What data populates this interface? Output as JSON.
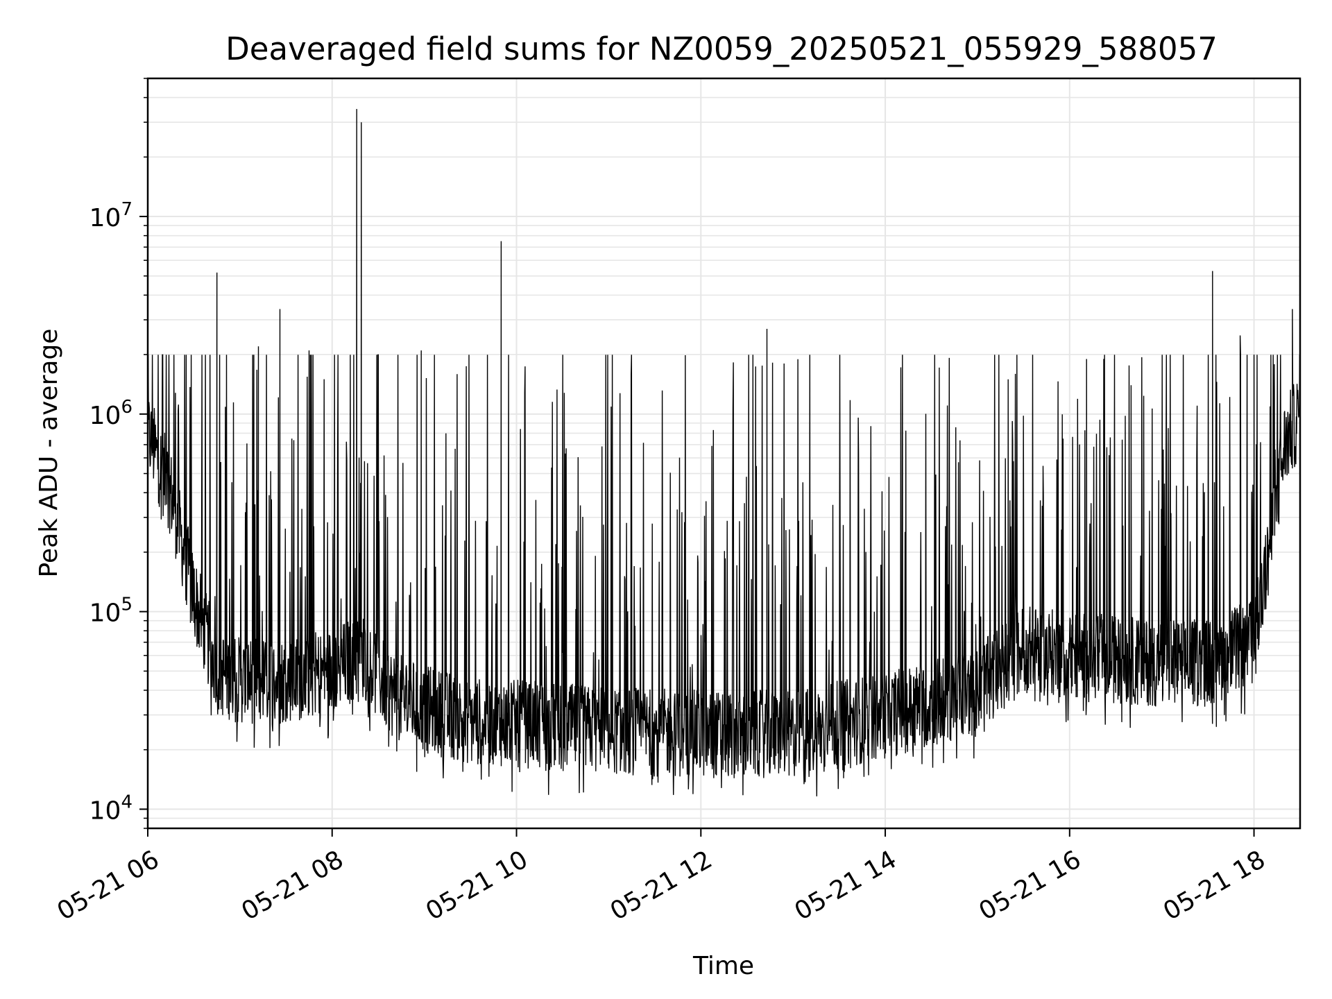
{
  "chart_data": {
    "type": "line",
    "title": "Deaveraged field sums for NZ0059_20250521_055929_588057",
    "xlabel": "Time",
    "ylabel": "Peak ADU - average",
    "yscale": "log",
    "ylim": [
      8000,
      50000000
    ],
    "xlim": [
      "05-21 06:00",
      "05-21 18:30"
    ],
    "x_ticks": [
      "05-21 06",
      "05-21 08",
      "05-21 10",
      "05-21 12",
      "05-21 14",
      "05-21 16",
      "05-21 18"
    ],
    "y_ticks": [
      {
        "base": "10",
        "exp": "4"
      },
      {
        "base": "10",
        "exp": "5"
      },
      {
        "base": "10",
        "exp": "6"
      },
      {
        "base": "10",
        "exp": "7"
      }
    ],
    "grid": true,
    "line_color": "#000000",
    "baseline_profile": {
      "x": [
        "05-21 06:00",
        "05-21 06:15",
        "05-21 06:30",
        "05-21 06:45",
        "05-21 07:00",
        "05-21 07:30",
        "05-21 08:00",
        "05-21 08:20",
        "05-21 08:40",
        "05-21 09:00",
        "05-21 09:30",
        "05-21 10:00",
        "05-21 11:00",
        "05-21 12:00",
        "05-21 13:00",
        "05-21 14:00",
        "05-21 15:00",
        "05-21 15:30",
        "05-21 16:00",
        "05-21 17:00",
        "05-21 17:30",
        "05-21 18:00",
        "05-21 18:10",
        "05-21 18:20",
        "05-21 18:30"
      ],
      "y": [
        800000,
        400000,
        120000,
        50000,
        45000,
        45000,
        50000,
        60000,
        38000,
        32000,
        28000,
        27000,
        25000,
        24000,
        24000,
        30000,
        40000,
        65000,
        60000,
        55000,
        55000,
        70000,
        200000,
        700000,
        1000000
      ]
    },
    "spikes": [
      {
        "x": "05-21 06:45",
        "y": 5200000
      },
      {
        "x": "05-21 07:12",
        "y": 2200000
      },
      {
        "x": "05-21 07:26",
        "y": 3400000
      },
      {
        "x": "05-21 07:45",
        "y": 2100000
      },
      {
        "x": "05-21 08:16",
        "y": 35000000
      },
      {
        "x": "05-21 08:19",
        "y": 30000000
      },
      {
        "x": "05-21 08:58",
        "y": 2100000
      },
      {
        "x": "05-21 09:50",
        "y": 7500000
      },
      {
        "x": "05-21 12:43",
        "y": 2700000
      },
      {
        "x": "05-21 15:20",
        "y": 1500000
      },
      {
        "x": "05-21 16:11",
        "y": 1900000
      },
      {
        "x": "05-21 16:40",
        "y": 1400000
      },
      {
        "x": "05-21 17:33",
        "y": 5300000
      },
      {
        "x": "05-21 17:51",
        "y": 2500000
      },
      {
        "x": "05-21 18:00",
        "y": 2000000
      },
      {
        "x": "05-21 18:25",
        "y": 3400000
      }
    ],
    "note_series": "dense time series of field sums; background noise band rendered from baseline_profile with spikes"
  }
}
